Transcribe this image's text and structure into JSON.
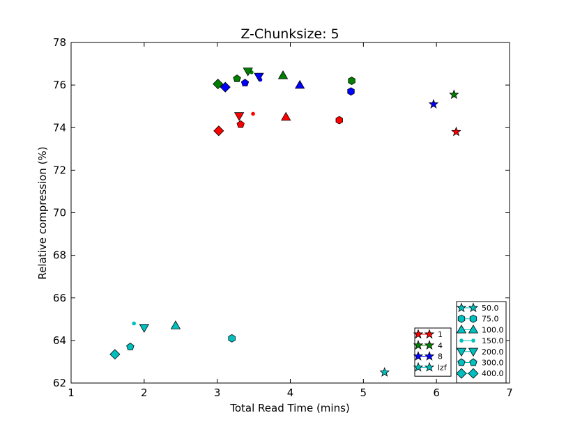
{
  "chart_data": {
    "type": "scatter",
    "title": "Z-Chunksize: 5",
    "xlabel": "Total Read Time (mins)",
    "ylabel": "Relative compression (%)",
    "xlim": [
      1,
      7
    ],
    "ylim": [
      62,
      78
    ],
    "xticks": [
      "1",
      "2",
      "3",
      "4",
      "5",
      "6",
      "7"
    ],
    "yticks": [
      "62",
      "64",
      "66",
      "68",
      "70",
      "72",
      "74",
      "76",
      "78"
    ],
    "grid": false,
    "colors": {
      "1": "#ff0000",
      "4": "#008000",
      "8": "#0000ff",
      "lzf": "#00bfbf"
    },
    "legend_series": {
      "placement": "lower-right",
      "entries": [
        {
          "label": "1",
          "color": "#ff0000"
        },
        {
          "label": "4",
          "color": "#008000"
        },
        {
          "label": "8",
          "color": "#0000ff"
        },
        {
          "label": "lzf",
          "color": "#00bfbf"
        }
      ]
    },
    "legend_markers": {
      "placement": "lower-right",
      "entries": [
        {
          "label": "50.0",
          "marker": "star"
        },
        {
          "label": "75.0",
          "marker": "hexagon"
        },
        {
          "label": "100.0",
          "marker": "triangle-up"
        },
        {
          "label": "150.0",
          "marker": "point"
        },
        {
          "label": "200.0",
          "marker": "triangle-down"
        },
        {
          "label": "300.0",
          "marker": "pentagon"
        },
        {
          "label": "400.0",
          "marker": "diamond"
        }
      ]
    },
    "series": [
      {
        "name": "1",
        "points": [
          {
            "x": 6.27,
            "y": 73.8,
            "marker": "star"
          },
          {
            "x": 4.67,
            "y": 74.35,
            "marker": "hexagon"
          },
          {
            "x": 3.94,
            "y": 74.5,
            "marker": "triangle-up"
          },
          {
            "x": 3.49,
            "y": 74.65,
            "marker": "point"
          },
          {
            "x": 3.3,
            "y": 74.55,
            "marker": "triangle-down"
          },
          {
            "x": 3.32,
            "y": 74.15,
            "marker": "pentagon"
          },
          {
            "x": 3.02,
            "y": 73.85,
            "marker": "diamond"
          }
        ]
      },
      {
        "name": "4",
        "points": [
          {
            "x": 6.24,
            "y": 75.55,
            "marker": "star"
          },
          {
            "x": 4.84,
            "y": 76.2,
            "marker": "hexagon"
          },
          {
            "x": 3.9,
            "y": 76.45,
            "marker": "triangle-up"
          },
          {
            "x": 3.47,
            "y": 76.6,
            "marker": "point"
          },
          {
            "x": 3.42,
            "y": 76.65,
            "marker": "triangle-down"
          },
          {
            "x": 3.27,
            "y": 76.3,
            "marker": "pentagon"
          },
          {
            "x": 3.01,
            "y": 76.05,
            "marker": "diamond"
          }
        ]
      },
      {
        "name": "8",
        "points": [
          {
            "x": 5.96,
            "y": 75.1,
            "marker": "star"
          },
          {
            "x": 4.83,
            "y": 75.7,
            "marker": "hexagon"
          },
          {
            "x": 4.13,
            "y": 76.0,
            "marker": "triangle-up"
          },
          {
            "x": 3.59,
            "y": 76.25,
            "marker": "point"
          },
          {
            "x": 3.57,
            "y": 76.4,
            "marker": "triangle-down"
          },
          {
            "x": 3.38,
            "y": 76.1,
            "marker": "pentagon"
          },
          {
            "x": 3.11,
            "y": 75.9,
            "marker": "diamond"
          }
        ]
      },
      {
        "name": "lzf",
        "points": [
          {
            "x": 5.29,
            "y": 62.5,
            "marker": "star"
          },
          {
            "x": 3.2,
            "y": 64.1,
            "marker": "hexagon"
          },
          {
            "x": 2.43,
            "y": 64.7,
            "marker": "triangle-up"
          },
          {
            "x": 1.86,
            "y": 64.8,
            "marker": "point"
          },
          {
            "x": 2.0,
            "y": 64.6,
            "marker": "triangle-down"
          },
          {
            "x": 1.81,
            "y": 63.7,
            "marker": "pentagon"
          },
          {
            "x": 1.6,
            "y": 63.35,
            "marker": "diamond"
          }
        ]
      }
    ]
  }
}
